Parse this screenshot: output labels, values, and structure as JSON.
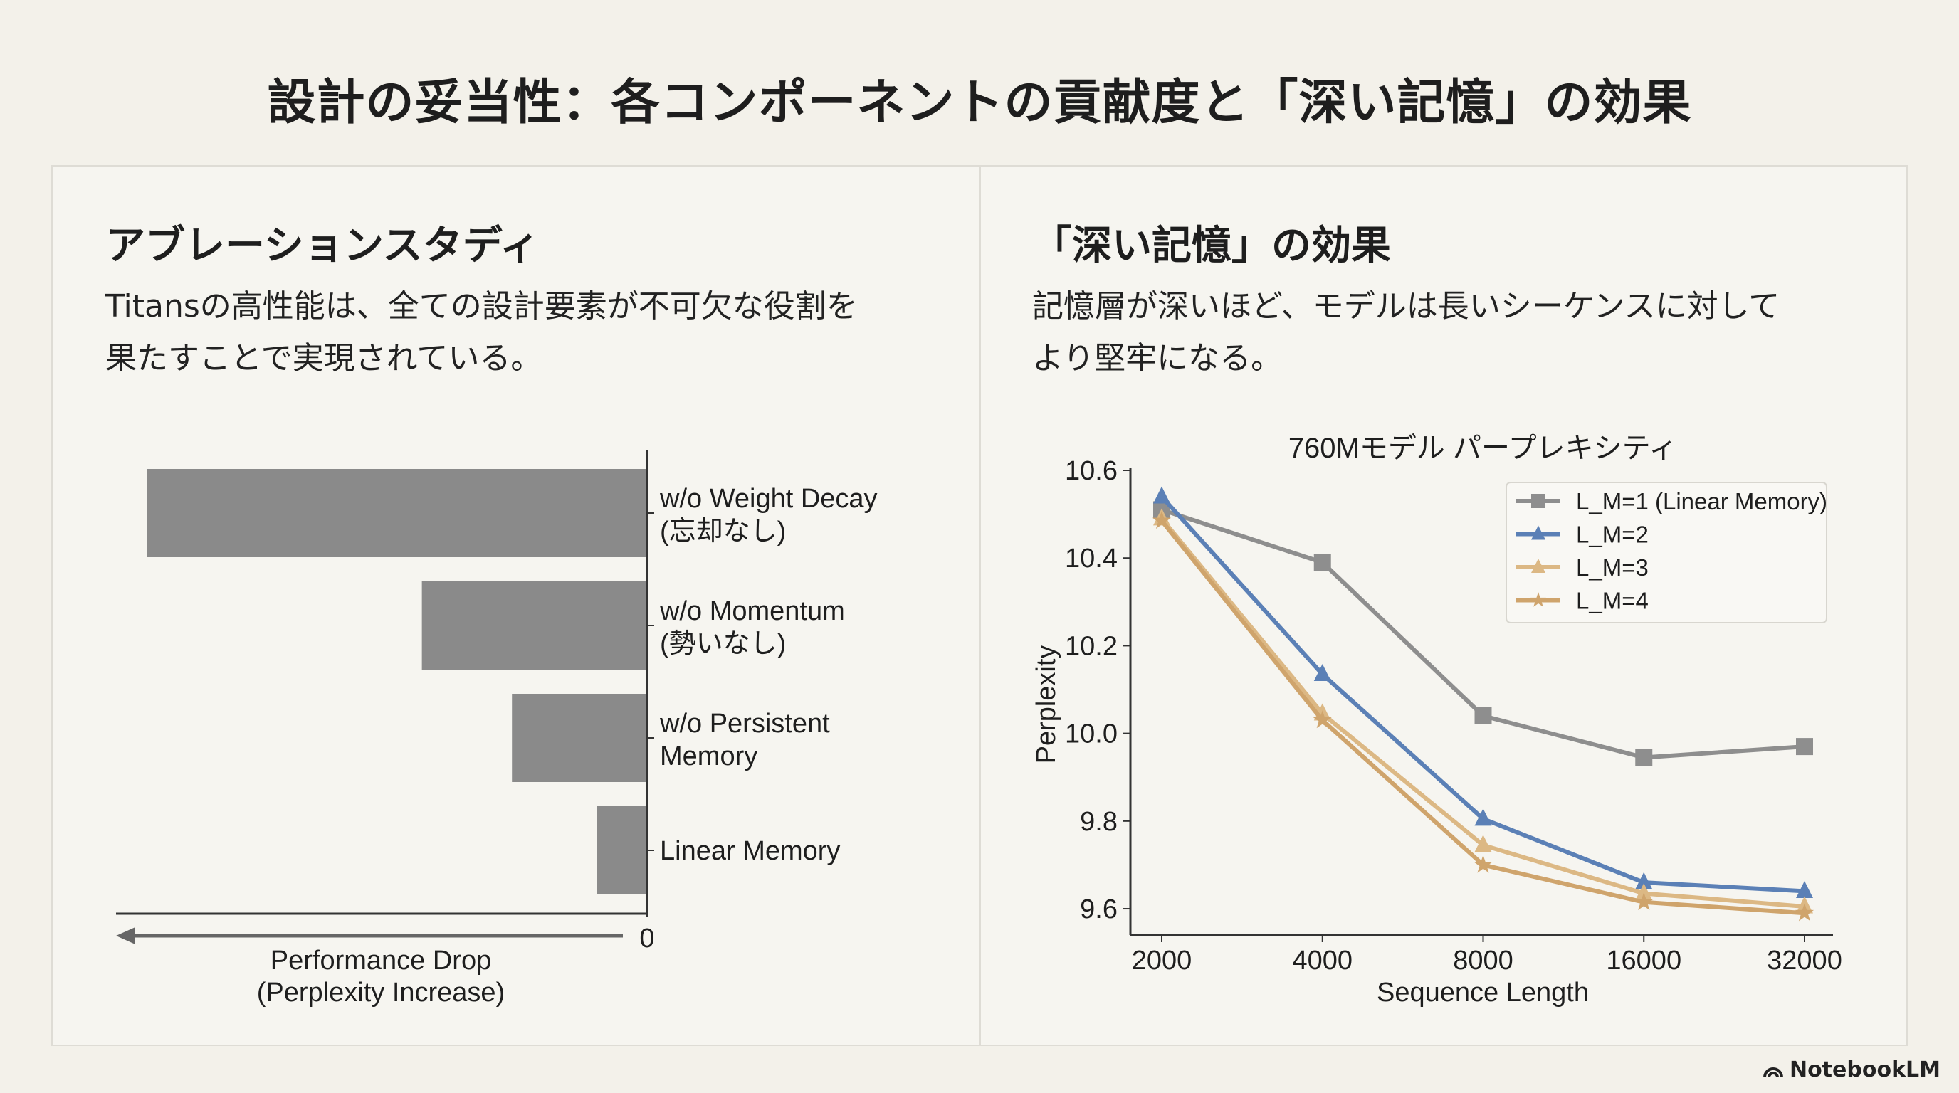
{
  "title": "設計の妥当性：各コンポーネントの貢献度と「深い記憶」の効果",
  "left": {
    "heading": "アブレーションスタディ",
    "body_lines": [
      "Titansの高性能は、全ての設計要素が不可欠な役割を",
      "果たすことで実現されている。"
    ]
  },
  "right": {
    "heading": "「深い記憶」の効果",
    "body_lines": [
      "記憶層が深いほど、モデルは長いシーケンスに対して",
      "より堅牢になる。"
    ]
  },
  "logo": {
    "text": "NotebookLM"
  },
  "chart_data": [
    {
      "type": "bar",
      "orientation": "horizontal",
      "direction": "leftward",
      "categories": [
        [
          "w/o Weight Decay",
          "(忘却なし)"
        ],
        [
          "w/o Momentum",
          "(勢いなし)"
        ],
        [
          "w/o Persistent",
          "Memory"
        ],
        [
          "Linear Memory"
        ]
      ],
      "values_relative": [
        1.0,
        0.45,
        0.27,
        0.1
      ],
      "xlabel": [
        "Performance Drop",
        "(Perplexity Increase)"
      ],
      "x_tick": "0",
      "color": "#8a8a8a"
    },
    {
      "type": "line",
      "title": "760Mモデル パープレキシティ",
      "xlabel": "Sequence Length",
      "ylabel": "Perplexity",
      "x": [
        2000,
        4000,
        8000,
        16000,
        32000
      ],
      "x_scale": "log2",
      "xticks": [
        "2000",
        "4000",
        "8000",
        "16000",
        "32000"
      ],
      "yticks": [
        "9.6",
        "9.8",
        "10.0",
        "10.2",
        "10.4",
        "10.6"
      ],
      "ylim": [
        9.54,
        10.6
      ],
      "legend": "top-right",
      "series": [
        {
          "name": "L_M=1 (Linear Memory)",
          "marker": "square",
          "color": "#8e8e8e",
          "values": [
            10.51,
            10.39,
            10.04,
            9.945,
            9.97
          ]
        },
        {
          "name": "L_M=2",
          "marker": "triangle",
          "color": "#5b80b6",
          "values": [
            10.54,
            10.135,
            9.805,
            9.66,
            9.64
          ]
        },
        {
          "name": "L_M=3",
          "marker": "triangle",
          "color": "#dcb884",
          "values": [
            10.49,
            10.045,
            9.745,
            9.635,
            9.605
          ]
        },
        {
          "name": "L_M=4",
          "marker": "star",
          "color": "#cfa46c",
          "values": [
            10.485,
            10.03,
            9.7,
            9.615,
            9.59
          ]
        }
      ]
    }
  ]
}
